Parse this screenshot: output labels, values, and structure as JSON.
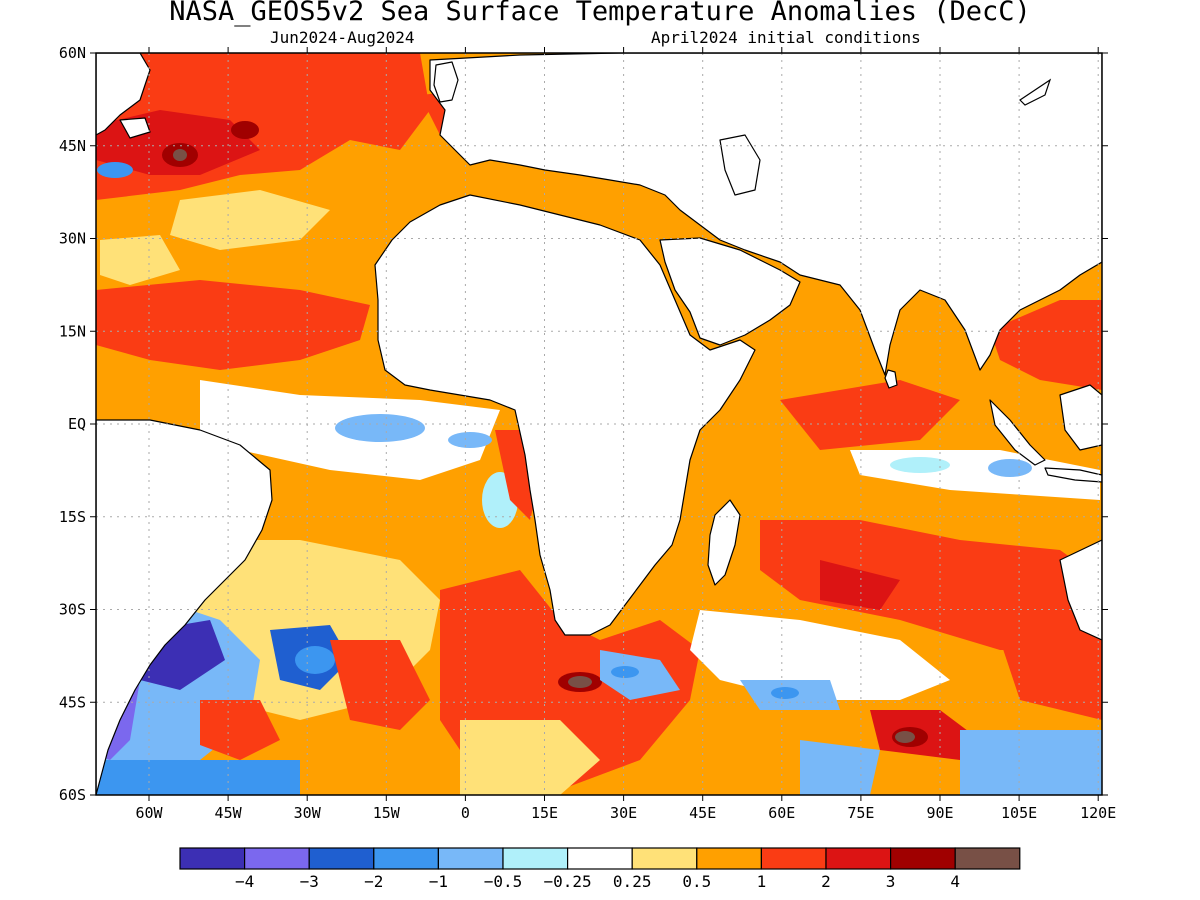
{
  "title": "NASA_GEOS5v2 Sea Surface Temperature Anomalies (DecC)",
  "period": "Jun2024-Aug2024",
  "initial_conditions": "April2024 initial conditions",
  "lat_labels": [
    "60N",
    "45N",
    "30N",
    "15N",
    "EQ",
    "15S",
    "30S",
    "45S",
    "60S"
  ],
  "lon_labels": [
    "60W",
    "45W",
    "30W",
    "15W",
    "0",
    "15E",
    "30E",
    "45E",
    "60E",
    "75E",
    "90E",
    "105E",
    "120E"
  ],
  "colorbar": {
    "colors": [
      "#3c2fb4",
      "#7b68ee",
      "#1f5fd0",
      "#3c96f0",
      "#78b8f8",
      "#b0f0fa",
      "#ffffff",
      "#ffe178",
      "#ffa000",
      "#fa3c14",
      "#dc1414",
      "#a00000",
      "#785046"
    ],
    "labels": [
      "-4",
      "-3",
      "-2",
      "-1",
      "-0.5",
      "-0.25",
      "0.25",
      "0.5",
      "1",
      "2",
      "3",
      "4"
    ]
  },
  "palette": {
    "land": "#ffffff",
    "coast": "#000000",
    "grid": "#aaaaaa"
  }
}
